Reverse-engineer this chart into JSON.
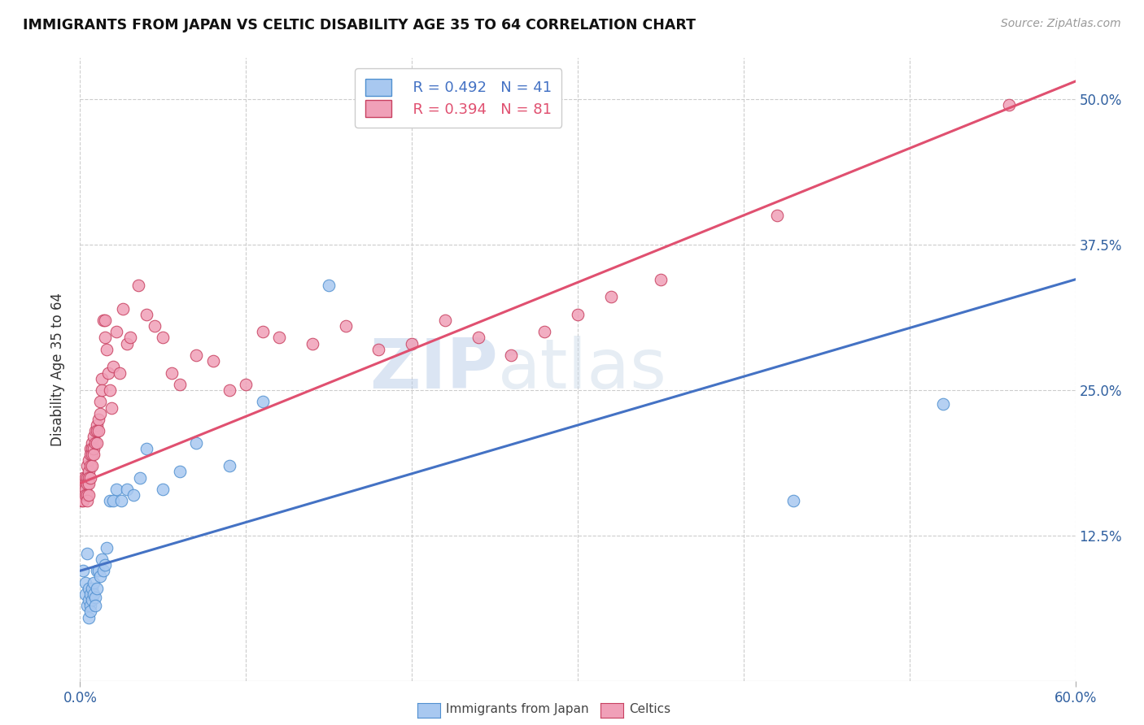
{
  "title": "IMMIGRANTS FROM JAPAN VS CELTIC DISABILITY AGE 35 TO 64 CORRELATION CHART",
  "source": "Source: ZipAtlas.com",
  "ylabel": "Disability Age 35 to 64",
  "xlim": [
    0.0,
    0.6
  ],
  "ylim": [
    0.0,
    0.535
  ],
  "x_ticks": [
    0.0,
    0.6
  ],
  "x_tick_labels": [
    "0.0%",
    "60.0%"
  ],
  "y_ticks": [
    0.0,
    0.125,
    0.25,
    0.375,
    0.5
  ],
  "y_tick_labels_right": [
    "",
    "12.5%",
    "25.0%",
    "37.5%",
    "50.0%"
  ],
  "legend_r1": "R = 0.492",
  "legend_n1": "N = 41",
  "legend_r2": "R = 0.394",
  "legend_n2": "N = 81",
  "color_japan": "#A8C8F0",
  "color_celtic": "#F0A0B8",
  "color_japan_line": "#4472C4",
  "color_celtic_line": "#E05070",
  "color_japan_edge": "#5090D0",
  "color_celtic_edge": "#C84060",
  "watermark_zip": "ZIP",
  "watermark_atlas": "atlas",
  "background_color": "#FFFFFF",
  "japan_x": [
    0.002,
    0.003,
    0.003,
    0.004,
    0.004,
    0.005,
    0.005,
    0.005,
    0.006,
    0.006,
    0.006,
    0.007,
    0.007,
    0.008,
    0.008,
    0.009,
    0.009,
    0.01,
    0.01,
    0.011,
    0.012,
    0.013,
    0.014,
    0.015,
    0.016,
    0.018,
    0.02,
    0.022,
    0.025,
    0.028,
    0.032,
    0.036,
    0.04,
    0.05,
    0.06,
    0.07,
    0.09,
    0.11,
    0.15,
    0.43,
    0.52
  ],
  "japan_y": [
    0.095,
    0.085,
    0.075,
    0.065,
    0.11,
    0.07,
    0.08,
    0.055,
    0.065,
    0.06,
    0.075,
    0.07,
    0.08,
    0.075,
    0.085,
    0.072,
    0.065,
    0.095,
    0.08,
    0.095,
    0.09,
    0.105,
    0.095,
    0.1,
    0.115,
    0.155,
    0.155,
    0.165,
    0.155,
    0.165,
    0.16,
    0.175,
    0.2,
    0.165,
    0.18,
    0.205,
    0.185,
    0.24,
    0.34,
    0.155,
    0.238
  ],
  "celtic_x": [
    0.001,
    0.001,
    0.001,
    0.002,
    0.002,
    0.002,
    0.002,
    0.003,
    0.003,
    0.003,
    0.003,
    0.004,
    0.004,
    0.004,
    0.004,
    0.004,
    0.005,
    0.005,
    0.005,
    0.005,
    0.005,
    0.006,
    0.006,
    0.006,
    0.006,
    0.007,
    0.007,
    0.007,
    0.007,
    0.008,
    0.008,
    0.008,
    0.009,
    0.009,
    0.01,
    0.01,
    0.01,
    0.011,
    0.011,
    0.012,
    0.012,
    0.013,
    0.013,
    0.014,
    0.015,
    0.015,
    0.016,
    0.017,
    0.018,
    0.019,
    0.02,
    0.022,
    0.024,
    0.026,
    0.028,
    0.03,
    0.035,
    0.04,
    0.045,
    0.05,
    0.055,
    0.06,
    0.07,
    0.08,
    0.09,
    0.1,
    0.11,
    0.12,
    0.14,
    0.16,
    0.18,
    0.2,
    0.22,
    0.24,
    0.26,
    0.28,
    0.3,
    0.32,
    0.35,
    0.42,
    0.56
  ],
  "celtic_y": [
    0.165,
    0.16,
    0.155,
    0.175,
    0.17,
    0.165,
    0.155,
    0.175,
    0.17,
    0.165,
    0.16,
    0.185,
    0.175,
    0.17,
    0.16,
    0.155,
    0.19,
    0.18,
    0.175,
    0.17,
    0.16,
    0.2,
    0.195,
    0.185,
    0.175,
    0.205,
    0.2,
    0.195,
    0.185,
    0.21,
    0.2,
    0.195,
    0.215,
    0.205,
    0.22,
    0.215,
    0.205,
    0.225,
    0.215,
    0.24,
    0.23,
    0.26,
    0.25,
    0.31,
    0.31,
    0.295,
    0.285,
    0.265,
    0.25,
    0.235,
    0.27,
    0.3,
    0.265,
    0.32,
    0.29,
    0.295,
    0.34,
    0.315,
    0.305,
    0.295,
    0.265,
    0.255,
    0.28,
    0.275,
    0.25,
    0.255,
    0.3,
    0.295,
    0.29,
    0.305,
    0.285,
    0.29,
    0.31,
    0.295,
    0.28,
    0.3,
    0.315,
    0.33,
    0.345,
    0.4,
    0.495
  ],
  "celtic_line_x0": 0.0,
  "celtic_line_y0": 0.17,
  "celtic_line_x1": 0.6,
  "celtic_line_y1": 0.515,
  "japan_line_x0": 0.0,
  "japan_line_y0": 0.095,
  "japan_line_x1": 0.6,
  "japan_line_y1": 0.345
}
